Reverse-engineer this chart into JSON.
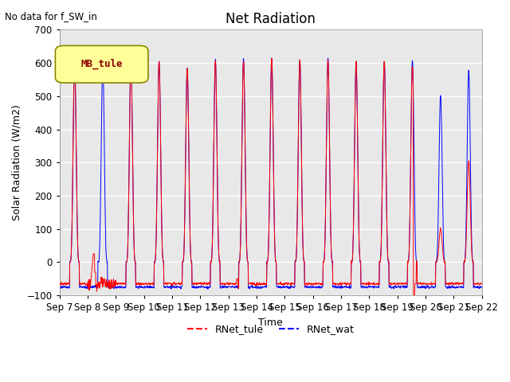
{
  "title": "Net Radiation",
  "ylabel": "Solar Radiation (W/m2)",
  "xlabel": "Time",
  "annotation_text": "No data for f_SW_in",
  "legend_label": "MB_tule",
  "legend_bg": "#ffff99",
  "legend_border": "#888800",
  "line1_label": "RNet_tule",
  "line1_color": "red",
  "line2_label": "RNet_wat",
  "line2_color": "blue",
  "ylim": [
    -100,
    700
  ],
  "background_color": "#e8e8e8",
  "grid_color": "white",
  "n_days": 15,
  "start_day": 7,
  "x_ticks": [
    7,
    8,
    9,
    10,
    11,
    12,
    13,
    14,
    15,
    16,
    17,
    18,
    19,
    20,
    21,
    22
  ],
  "x_tick_labels": [
    "Sep 7",
    "Sep 8",
    "Sep 9",
    "Sep 10",
    "Sep 11",
    "Sep 12",
    "Sep 13",
    "Sep 14",
    "Sep 15",
    "Sep 16",
    "Sep 17",
    "Sep 18",
    "Sep 19",
    "Sep 20",
    "Sep 21",
    "Sep 22"
  ],
  "yticks": [
    -100,
    0,
    100,
    200,
    300,
    400,
    500,
    600,
    700
  ],
  "peaks_tule": [
    615,
    0,
    600,
    605,
    585,
    610,
    608,
    615,
    612,
    610,
    605,
    605,
    595,
    100,
    305
  ],
  "peaks_wat": [
    590,
    595,
    625,
    605,
    585,
    610,
    615,
    615,
    610,
    615,
    600,
    607,
    608,
    505,
    578
  ],
  "night_tule": -65,
  "night_wat": -75,
  "pts_per_day": 96
}
